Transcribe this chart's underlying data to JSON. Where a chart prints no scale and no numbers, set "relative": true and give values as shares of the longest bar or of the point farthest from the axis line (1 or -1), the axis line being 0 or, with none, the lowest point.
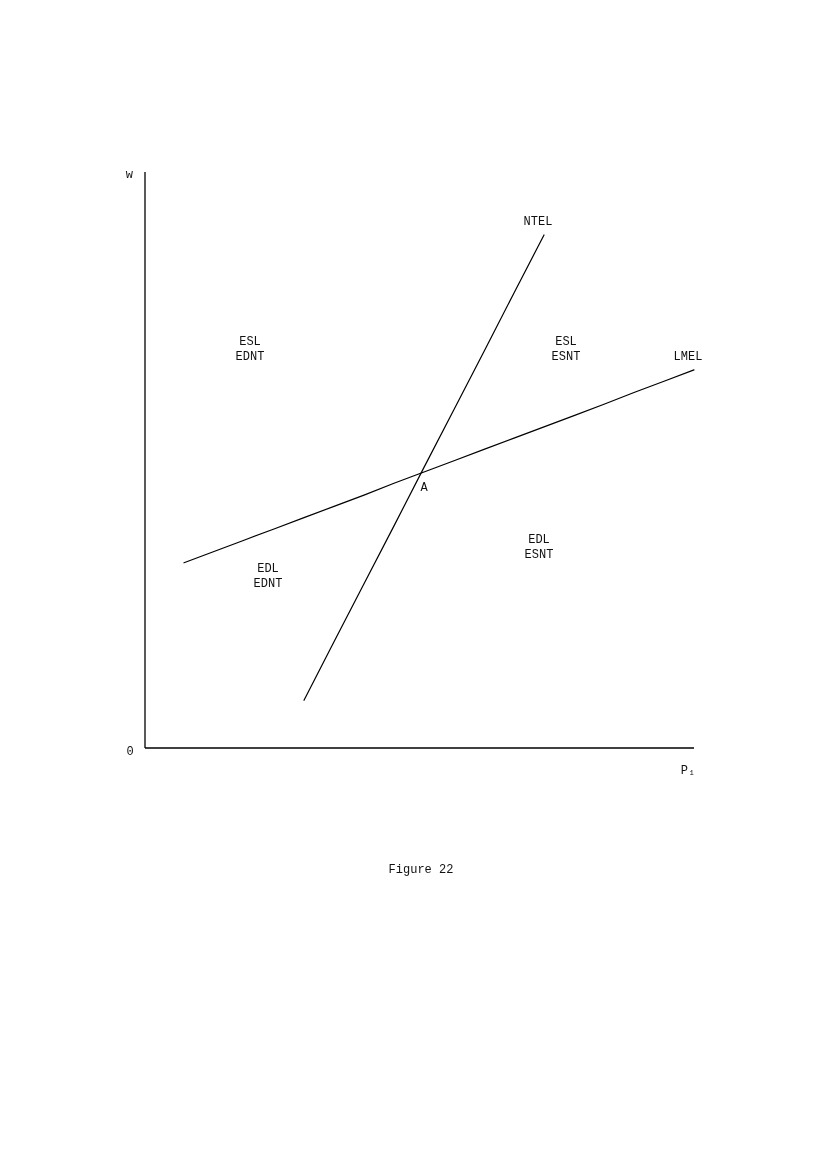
{
  "chart_data": {
    "type": "line",
    "xlabel": "P₁",
    "ylabel": "w",
    "relative": true,
    "line_style": "solid",
    "categories": [
      null,
      null,
      null,
      null,
      null,
      null,
      null,
      null,
      null,
      null,
      null,
      null,
      null,
      null,
      null,
      null,
      null,
      null
    ],
    "series": [
      {
        "name": "NTEL",
        "color": "#000000",
        "values": [
          null,
          null,
          null,
          null,
          0.093,
          0.207,
          0.32,
          0.433,
          0.547,
          0.66,
          0.773,
          0.887,
          1.0,
          null,
          null,
          null,
          null,
          null
        ]
      },
      {
        "name": "LMEL",
        "color": "#000000",
        "values": [
          0.361,
          0.383,
          0.405,
          0.427,
          0.449,
          0.471,
          0.493,
          0.516,
          0.538,
          0.56,
          0.582,
          0.604,
          0.626,
          0.648,
          0.67,
          0.693,
          0.715,
          0.737
        ]
      }
    ],
    "annotations": [
      "ESL\nEDNT",
      "ESL\nESNT",
      "EDL\nEDNT",
      "EDL\nESNT",
      "A",
      "0",
      "Figure 22"
    ]
  }
}
